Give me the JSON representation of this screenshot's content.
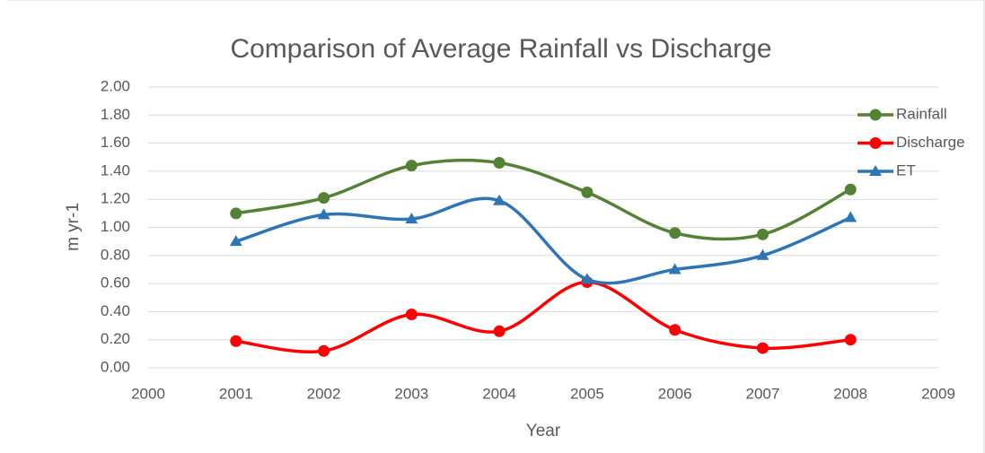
{
  "chart_data": {
    "type": "line",
    "title": "Comparison of Average Rainfall vs Discharge",
    "x_label": "Year",
    "y_label": "m yr-1",
    "x": [
      2001,
      2002,
      2003,
      2004,
      2005,
      2006,
      2007,
      2008
    ],
    "series": [
      {
        "name": "Rainfall",
        "color": "#548235",
        "marker": "circle",
        "values": [
          1.1,
          1.21,
          1.44,
          1.46,
          1.25,
          0.96,
          0.95,
          1.27
        ]
      },
      {
        "name": "Discharge",
        "color": "#ff0000",
        "marker": "circle",
        "values": [
          0.19,
          0.12,
          0.38,
          0.26,
          0.61,
          0.27,
          0.14,
          0.2
        ]
      },
      {
        "name": "ET",
        "color": "#2e75b6",
        "marker": "triangle",
        "values": [
          0.9,
          1.09,
          1.06,
          1.19,
          0.63,
          0.7,
          0.8,
          1.07
        ]
      }
    ],
    "xlim": [
      2000,
      2009
    ],
    "xticks": [
      2000,
      2001,
      2002,
      2003,
      2004,
      2005,
      2006,
      2007,
      2008,
      2009
    ],
    "ylim": [
      0,
      2
    ],
    "yticks": [
      {
        "value": 0,
        "label": "0.00"
      },
      {
        "value": 0.2,
        "label": "0.20"
      },
      {
        "value": 0.4,
        "label": "0.40"
      },
      {
        "value": 0.6,
        "label": "0.60"
      },
      {
        "value": 0.8,
        "label": "0.80"
      },
      {
        "value": 1,
        "label": "1.00"
      },
      {
        "value": 1.2,
        "label": "1.20"
      },
      {
        "value": 1.4,
        "label": "1.40"
      },
      {
        "value": 1.6,
        "label": "1.60"
      },
      {
        "value": 1.8,
        "label": "1.80"
      },
      {
        "value": 2,
        "label": "2.00"
      }
    ],
    "grid": true,
    "smooth": true,
    "legend": "upper right"
  }
}
